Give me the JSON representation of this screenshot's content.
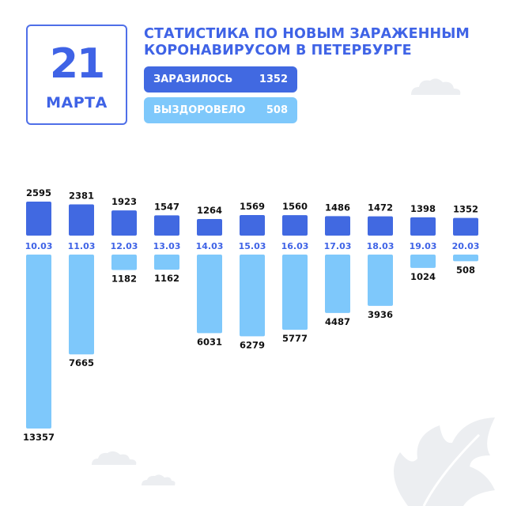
{
  "header": {
    "day": "21",
    "month": "МАРТА",
    "title_line1": "СТАТИСТИКА ПО НОВЫМ ЗАРАЖЕННЫМ",
    "title_line2": "КОРОНАВИРУСОМ В ПЕТЕРБУРГЕ"
  },
  "summary": {
    "infected_label": "ЗАРАЗИЛОСЬ",
    "infected_value": "1352",
    "recovered_label": "ВЫЗДОРОВЕЛО",
    "recovered_value": "508"
  },
  "colors": {
    "accent": "#3f63e6",
    "infected": "#4169e1",
    "recovered": "#7ec8fb",
    "decor": "#eceef1"
  },
  "chart_data": {
    "type": "bar",
    "categories": [
      "10.03",
      "11.03",
      "12.03",
      "13.03",
      "14.03",
      "15.03",
      "16.03",
      "17.03",
      "18.03",
      "19.03",
      "20.03"
    ],
    "series": [
      {
        "name": "ЗАРАЗИЛОСЬ",
        "values": [
          2595,
          2381,
          1923,
          1547,
          1264,
          1569,
          1560,
          1486,
          1472,
          1398,
          1352
        ]
      },
      {
        "name": "ВЫЗДОРОВЕЛО",
        "values": [
          13357,
          7665,
          1182,
          1162,
          6031,
          6279,
          5777,
          4487,
          3936,
          1024,
          508
        ]
      }
    ]
  }
}
